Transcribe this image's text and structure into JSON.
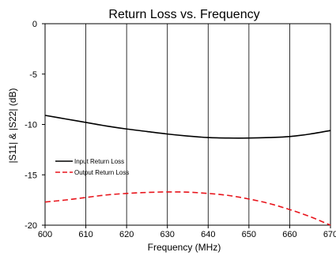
{
  "chart_data": {
    "type": "line",
    "title": "Return Loss vs. Frequency",
    "xlabel": "Frequency (MHz)",
    "ylabel": "|S11| & |S22| (dB)",
    "xlim": [
      600,
      670
    ],
    "ylim": [
      -20,
      0
    ],
    "x_ticks": [
      600,
      610,
      620,
      630,
      640,
      650,
      660,
      670
    ],
    "y_ticks": [
      0,
      -5,
      -10,
      -15,
      -20
    ],
    "grid": "vertical",
    "legend_position": "bottom-left",
    "series": [
      {
        "name": "Input Return Loss",
        "color": "#000000",
        "dash": "solid",
        "x": [
          600,
          605,
          610,
          615,
          620,
          625,
          630,
          635,
          640,
          645,
          650,
          655,
          660,
          665,
          670
        ],
        "y": [
          -9.1,
          -9.45,
          -9.8,
          -10.15,
          -10.45,
          -10.7,
          -10.95,
          -11.15,
          -11.3,
          -11.35,
          -11.35,
          -11.3,
          -11.2,
          -10.95,
          -10.6
        ]
      },
      {
        "name": "Output Return Loss",
        "color": "#e8141b",
        "dash": "dashed",
        "x": [
          600,
          605,
          610,
          615,
          620,
          625,
          630,
          635,
          640,
          645,
          650,
          655,
          660,
          665,
          670
        ],
        "y": [
          -17.7,
          -17.5,
          -17.25,
          -17.0,
          -16.85,
          -16.75,
          -16.7,
          -16.72,
          -16.85,
          -17.05,
          -17.4,
          -17.85,
          -18.45,
          -19.15,
          -20.0
        ]
      }
    ]
  }
}
